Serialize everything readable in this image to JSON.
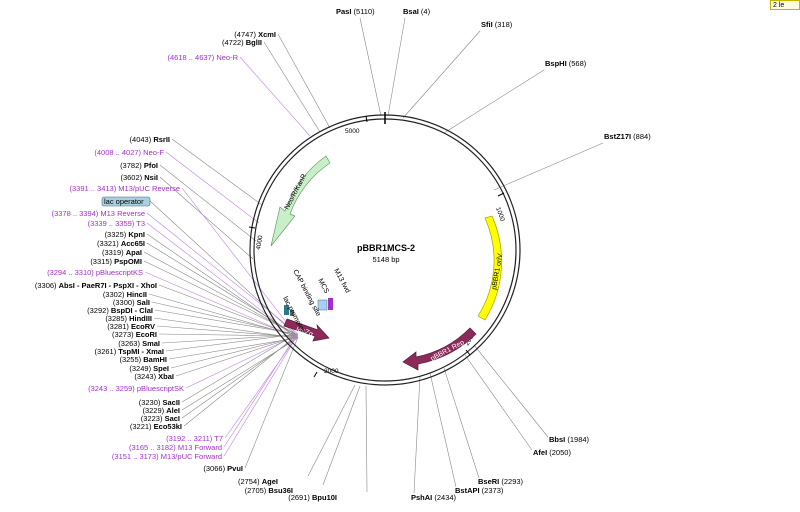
{
  "corner_label": "2 le",
  "map": {
    "name": "pBBR1MCS-2",
    "length": "5148 bp"
  },
  "ticks": [
    "1000",
    "2000",
    "3000",
    "4000",
    "5000"
  ],
  "features": {
    "neo": "Neo/R/KanR",
    "ori": "pBBR1 oriV",
    "rep": "pBBR1 Rep",
    "lacz": "lacZα",
    "lacp": "lac promoter",
    "cap": "CAP binding site",
    "mcs": "MCS",
    "m13fwd": "M13 fwd",
    "lacop": "lac operator"
  },
  "right_labels": [
    {
      "pos": "(5110)",
      "name": "PasI"
    },
    {
      "pos": "(4)",
      "name": "BsaI"
    },
    {
      "pos": "(318)",
      "name": "SfiI"
    },
    {
      "pos": "(568)",
      "name": "BspHI"
    },
    {
      "pos": "(884)",
      "name": "BstZ17I"
    },
    {
      "pos": "(1984)",
      "name": "BbsI"
    },
    {
      "pos": "(2050)",
      "name": "AfeI"
    },
    {
      "pos": "(2293)",
      "name": "BseRI"
    },
    {
      "pos": "(2373)",
      "name": "BstAPI"
    },
    {
      "pos": "(2434)",
      "name": "PshAI"
    }
  ],
  "left_labels": [
    {
      "pos": "(4747)",
      "name": "XcmI"
    },
    {
      "pos": "(4722)",
      "name": "BglII"
    },
    {
      "pos": "(4618 .. 4637)",
      "name": "Neo-R",
      "primer": true
    },
    {
      "pos": "(4043)",
      "name": "RsrII"
    },
    {
      "pos": "(4008 .. 4027)",
      "name": "Neo-F",
      "primer": true
    },
    {
      "pos": "(3782)",
      "name": "PfoI"
    },
    {
      "pos": "(3602)",
      "name": "NsiI"
    },
    {
      "pos": "(3391 .. 3413)",
      "name": "M13/pUC Reverse",
      "primer": true
    },
    {
      "pos": "",
      "name": "lac operator",
      "box": true
    },
    {
      "pos": "(3378 .. 3394)",
      "name": "M13 Reverse",
      "primer": true
    },
    {
      "pos": "(3339 .. 3359)",
      "name": "T3",
      "primer": true
    },
    {
      "pos": "(3325)",
      "name": "KpnI"
    },
    {
      "pos": "(3321)",
      "name": "Acc65I"
    },
    {
      "pos": "(3319)",
      "name": "ApaI"
    },
    {
      "pos": "(3315)",
      "name": "PspOMI"
    },
    {
      "pos": "(3294 .. 3310)",
      "name": "pBluescriptKS",
      "primer": true
    },
    {
      "pos": "(3306)",
      "name": "AbsI - PaeR7I - PspXI - XhoI"
    },
    {
      "pos": "(3302)",
      "name": "HincII"
    },
    {
      "pos": "(3300)",
      "name": "SalI"
    },
    {
      "pos": "(3292)",
      "name": "BspDI - ClaI"
    },
    {
      "pos": "(3285)",
      "name": "HindIII"
    },
    {
      "pos": "(3281)",
      "name": "EcoRV"
    },
    {
      "pos": "(3273)",
      "name": "EcoRI"
    },
    {
      "pos": "(3263)",
      "name": "SmaI"
    },
    {
      "pos": "(3261)",
      "name": "TspMI - XmaI"
    },
    {
      "pos": "(3255)",
      "name": "BamHI"
    },
    {
      "pos": "(3249)",
      "name": "SpeI"
    },
    {
      "pos": "(3243)",
      "name": "XbaI"
    },
    {
      "pos": "(3243 .. 3259)",
      "name": "pBluescriptSK",
      "primer": true
    },
    {
      "pos": "(3230)",
      "name": "SacII"
    },
    {
      "pos": "(3229)",
      "name": "AleI"
    },
    {
      "pos": "(3223)",
      "name": "SacI"
    },
    {
      "pos": "(3221)",
      "name": "Eco53kI"
    },
    {
      "pos": "(3192 .. 3211)",
      "name": "T7",
      "primer": true
    },
    {
      "pos": "(3165 .. 3182)",
      "name": "M13 Forward",
      "primer": true
    },
    {
      "pos": "(3151 .. 3173)",
      "name": "M13/pUC Forward",
      "primer": true
    },
    {
      "pos": "(3066)",
      "name": "PvuI"
    }
  ],
  "bottom_labels": [
    {
      "pos": "(2754)",
      "name": "AgeI"
    },
    {
      "pos": "(2705)",
      "name": "Bsu36I"
    },
    {
      "pos": "(2691)",
      "name": "Bpu10I"
    }
  ],
  "colors": {
    "neo": "#c8f0c8",
    "ori": "#ffff00",
    "rep": "#8c2a5a",
    "lacz": "#8c2a5a",
    "primer": "#a030c8",
    "lacop_box": "#a8d0e0"
  }
}
